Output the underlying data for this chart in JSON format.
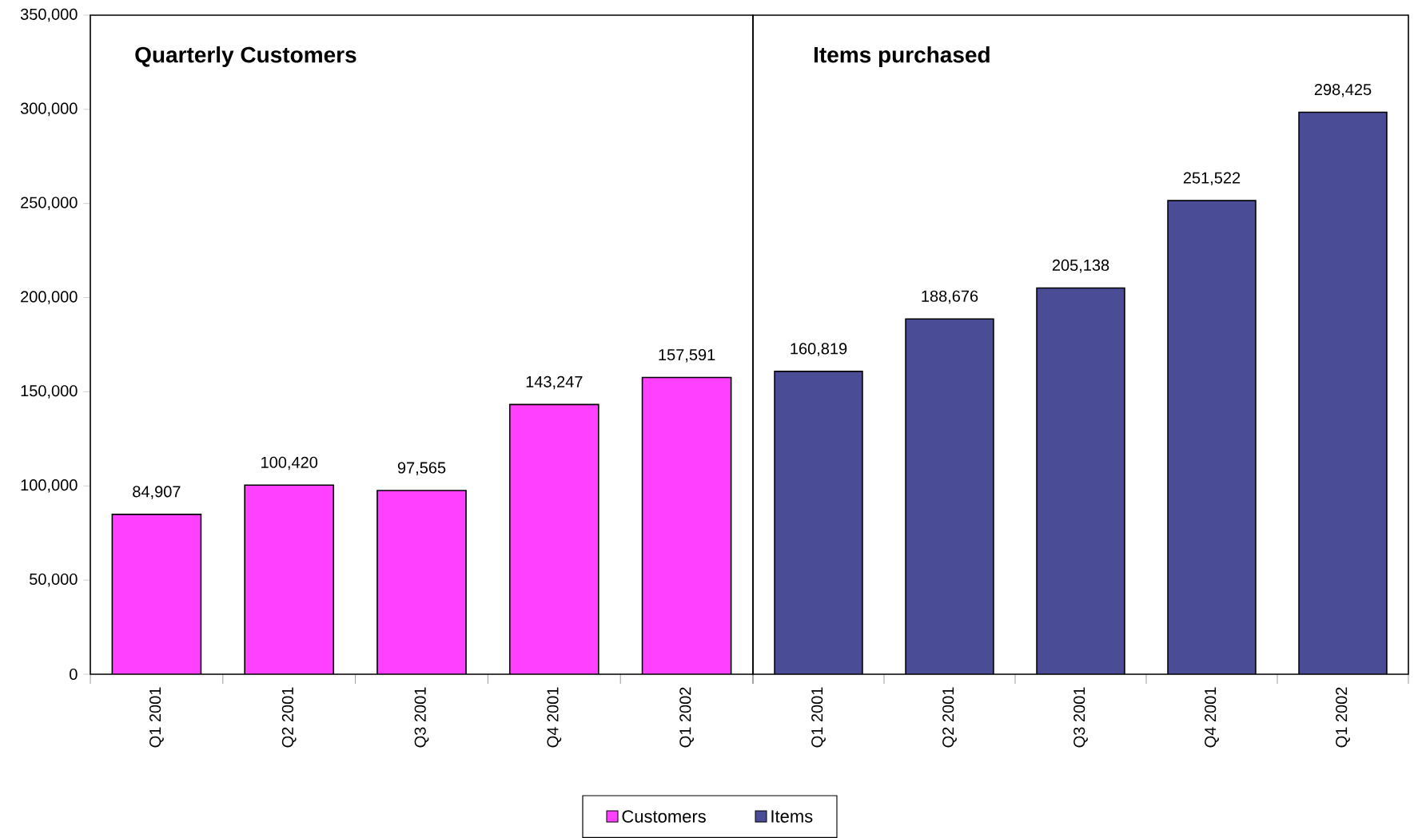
{
  "chart_data": [
    {
      "type": "bar",
      "title": "Quarterly Customers",
      "categories": [
        "Q1 2001",
        "Q2 2001",
        "Q3 2001",
        "Q4 2001",
        "Q1 2002"
      ],
      "series": [
        {
          "name": "Customers",
          "color": "#ff40ff",
          "values": [
            84907,
            100420,
            97565,
            143247,
            157591
          ],
          "value_labels": [
            "84,907",
            "100,420",
            "97,565",
            "143,247",
            "157,591"
          ]
        }
      ],
      "ylim": [
        0,
        350000
      ],
      "yticks": [
        {
          "value": 0,
          "label": "0"
        },
        {
          "value": 50000,
          "label": "50,000"
        },
        {
          "value": 100000,
          "label": "100,000"
        },
        {
          "value": 150000,
          "label": "150,000"
        },
        {
          "value": 200000,
          "label": "200,000"
        },
        {
          "value": 250000,
          "label": "250,000"
        },
        {
          "value": 300000,
          "label": "300,000"
        },
        {
          "value": 350000,
          "label": "350,000"
        }
      ],
      "legend": "bottom"
    },
    {
      "type": "bar",
      "title": "Items purchased",
      "categories": [
        "Q1 2001",
        "Q2 2001",
        "Q3 2001",
        "Q4 2001",
        "Q1 2002"
      ],
      "series": [
        {
          "name": "Items",
          "color": "#4a4c96",
          "values": [
            160819,
            188676,
            205138,
            251522,
            298425
          ],
          "value_labels": [
            "160,819",
            "188,676",
            "205,138",
            "251,522",
            "298,425"
          ]
        }
      ],
      "ylim": [
        0,
        350000
      ],
      "tick_labels": "x",
      "legend": "bottom"
    }
  ]
}
